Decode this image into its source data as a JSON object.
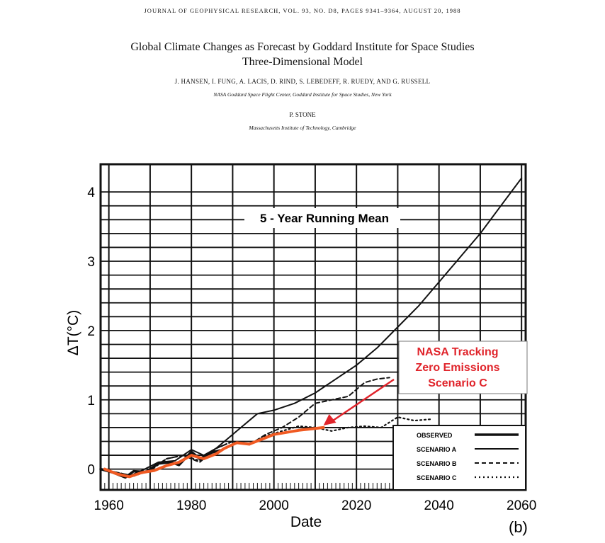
{
  "header": {
    "journal": "JOURNAL OF GEOPHYSICAL RESEARCH, VOL. 93, NO. D8, PAGES 9341–9364, AUGUST 20, 1988",
    "title_line1": "Global Climate Changes as Forecast by Goddard Institute for Space Studies",
    "title_line2": "Three-Dimensional Model",
    "authors": "J. HANSEN, I. FUNG, A. LACIS, D. RIND, S. LEBEDEFF, R. RUEDY, AND G. RUSSELL",
    "affiliation1": "NASA Goddard Space Flight Center, Goddard Institute for Space Studies, New York",
    "author2": "P. STONE",
    "affiliation2": "Massachusetts Institute of Technology, Cambridge"
  },
  "chart_data": {
    "type": "line",
    "title": "5 - Year Running Mean",
    "xlabel": "Date",
    "ylabel": "ΔT(°C)",
    "panel_label": "(b)",
    "xlim": [
      1958,
      2061
    ],
    "ylim": [
      -0.3,
      4.4
    ],
    "x_ticks": [
      1960,
      1980,
      2000,
      2020,
      2040,
      2060
    ],
    "y_ticks": [
      0,
      1,
      2,
      3,
      4
    ],
    "grid": true,
    "legend_position": "bottom-right",
    "series": [
      {
        "name": "OBSERVED",
        "style": "solid-thick",
        "color": "#111111",
        "x": [
          1958,
          1961,
          1964,
          1966,
          1969,
          1972,
          1975,
          1977,
          1980,
          1982,
          1985,
          1987
        ],
        "y": [
          0.0,
          -0.05,
          -0.12,
          -0.03,
          -0.04,
          0.08,
          0.1,
          0.06,
          0.25,
          0.15,
          0.24,
          0.27
        ]
      },
      {
        "name": "SCENARIO A",
        "style": "solid",
        "color": "#111111",
        "x": [
          1958,
          1962,
          1965,
          1968,
          1972,
          1976,
          1980,
          1983,
          1986,
          1989,
          1992,
          1996,
          2000,
          2005,
          2010,
          2015,
          2020,
          2025,
          2030,
          2035,
          2040,
          2045,
          2050,
          2055,
          2060
        ],
        "y": [
          0.0,
          -0.05,
          -0.1,
          -0.02,
          0.1,
          0.12,
          0.28,
          0.2,
          0.3,
          0.45,
          0.6,
          0.8,
          0.85,
          0.95,
          1.1,
          1.3,
          1.5,
          1.75,
          2.05,
          2.35,
          2.7,
          3.05,
          3.4,
          3.8,
          4.2
        ]
      },
      {
        "name": "SCENARIO B",
        "style": "dashed",
        "color": "#111111",
        "x": [
          1958,
          1962,
          1966,
          1970,
          1974,
          1978,
          1982,
          1986,
          1990,
          1994,
          1998,
          2002,
          2006,
          2010,
          2014,
          2018,
          2022,
          2025,
          2028
        ],
        "y": [
          0.0,
          -0.05,
          -0.1,
          0.0,
          0.15,
          0.2,
          0.1,
          0.3,
          0.4,
          0.35,
          0.5,
          0.6,
          0.75,
          0.95,
          1.0,
          1.05,
          1.25,
          1.3,
          1.32
        ]
      },
      {
        "name": "SCENARIO C",
        "style": "dotted",
        "color": "#111111",
        "x": [
          1958,
          1962,
          1966,
          1970,
          1974,
          1978,
          1982,
          1986,
          1990,
          1994,
          1998,
          2002,
          2006,
          2010,
          2014,
          2018,
          2022,
          2026,
          2030,
          2034,
          2038
        ],
        "y": [
          0.0,
          -0.05,
          -0.1,
          -0.02,
          0.15,
          0.2,
          0.12,
          0.3,
          0.4,
          0.35,
          0.48,
          0.55,
          0.62,
          0.6,
          0.55,
          0.6,
          0.62,
          0.6,
          0.75,
          0.7,
          0.72
        ]
      },
      {
        "name": "NASA Tracking Zero Emissions Scenario C",
        "style": "orange-overlay",
        "color": "#f05a22",
        "x": [
          1959,
          1962,
          1965,
          1968,
          1971,
          1974,
          1977,
          1980,
          1983,
          1986,
          1988,
          1991,
          1994,
          1997,
          2000,
          2003,
          2006,
          2009,
          2012
        ],
        "y": [
          0.0,
          -0.07,
          -0.11,
          -0.05,
          -0.02,
          0.05,
          0.1,
          0.2,
          0.15,
          0.22,
          0.3,
          0.38,
          0.36,
          0.43,
          0.5,
          0.53,
          0.56,
          0.58,
          0.6
        ]
      }
    ],
    "annotation": {
      "lines": [
        "NASA Tracking",
        "Zero Emissions",
        "Scenario C"
      ],
      "color": "#e0242b",
      "arrow_to": [
        2012,
        0.63
      ]
    }
  }
}
